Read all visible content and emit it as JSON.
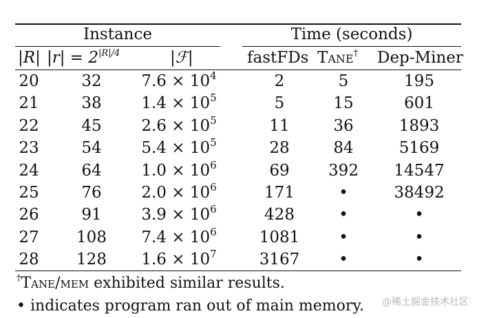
{
  "header": {
    "instance_group": "Instance",
    "time_group": "Time (seconds)",
    "col_R": "|R|",
    "col_r": "|r| = 2",
    "col_r_sup": "|R|/4",
    "col_F": "|ℱ|",
    "col_fastfds": "fastFDs",
    "col_tane": "Tane",
    "col_tane_sup": "†",
    "col_depminer": "Dep-Miner"
  },
  "rows": [
    {
      "R": "20",
      "r": "32",
      "F_mant": "7.6 × 10",
      "F_exp": "4",
      "fastfds": "2",
      "tane": "5",
      "depminer": "195"
    },
    {
      "R": "21",
      "r": "38",
      "F_mant": "1.4 × 10",
      "F_exp": "5",
      "fastfds": "5",
      "tane": "15",
      "depminer": "601"
    },
    {
      "R": "22",
      "r": "45",
      "F_mant": "2.6 × 10",
      "F_exp": "5",
      "fastfds": "11",
      "tane": "36",
      "depminer": "1893"
    },
    {
      "R": "23",
      "r": "54",
      "F_mant": "5.4 × 10",
      "F_exp": "5",
      "fastfds": "28",
      "tane": "84",
      "depminer": "5169"
    },
    {
      "R": "24",
      "r": "64",
      "F_mant": "1.0 × 10",
      "F_exp": "6",
      "fastfds": "69",
      "tane": "392",
      "depminer": "14547"
    },
    {
      "R": "25",
      "r": "76",
      "F_mant": "2.0 × 10",
      "F_exp": "6",
      "fastfds": "171",
      "tane": "•",
      "depminer": "38492"
    },
    {
      "R": "26",
      "r": "91",
      "F_mant": "3.9 × 10",
      "F_exp": "6",
      "fastfds": "428",
      "tane": "•",
      "depminer": "•"
    },
    {
      "R": "27",
      "r": "108",
      "F_mant": "7.4 × 10",
      "F_exp": "6",
      "fastfds": "1081",
      "tane": "•",
      "depminer": "•"
    },
    {
      "R": "28",
      "r": "128",
      "F_mant": "1.6 × 10",
      "F_exp": "7",
      "fastfds": "3167",
      "tane": "•",
      "depminer": "•"
    }
  ],
  "footnotes": {
    "dagger": "†",
    "tane_mem": "Tane/mem",
    "note1_rest": " exhibited similar results.",
    "bullet": "•",
    "note2_rest": " indicates program ran out of main memory."
  },
  "watermark": "@稀土掘金技术社区"
}
